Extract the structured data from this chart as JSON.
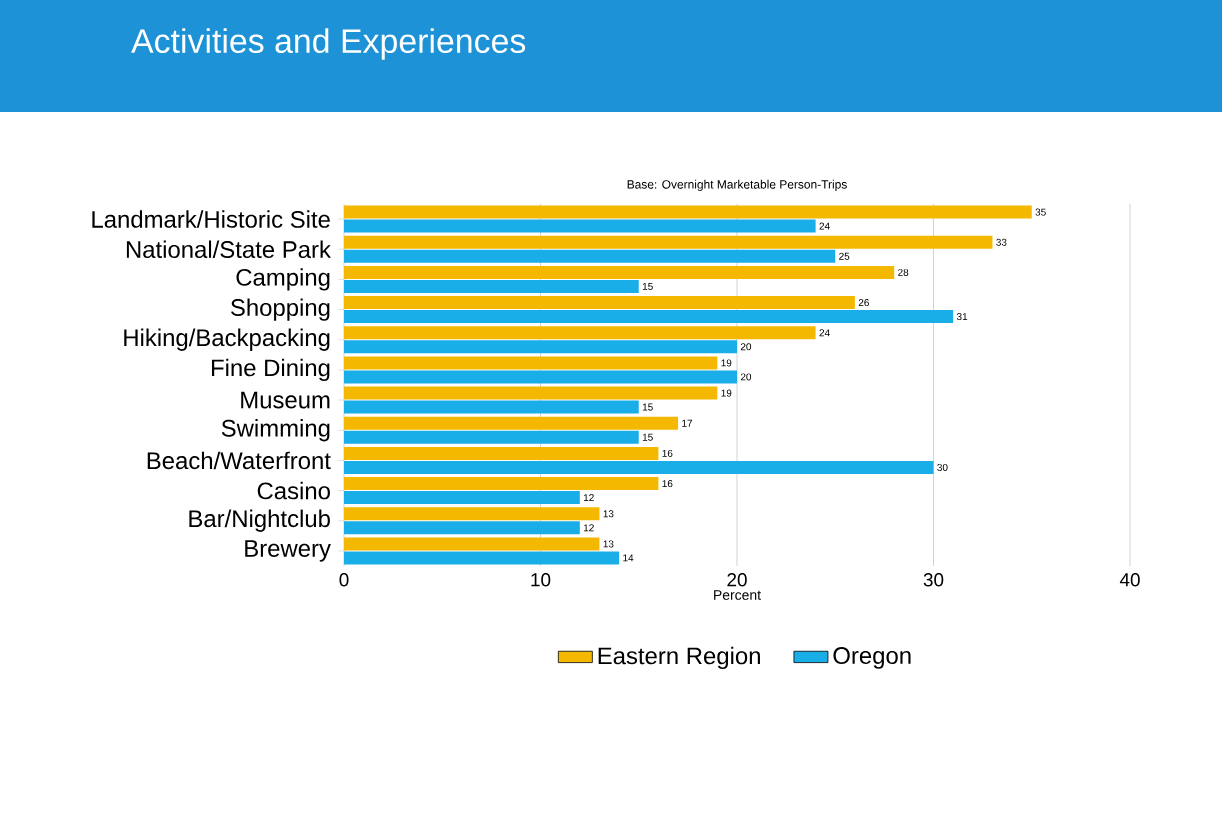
{
  "chart_data": {
    "type": "bar",
    "orientation": "horizontal",
    "title": "Activities and Experiences",
    "subtitle": "Base: Overnight Marketable Person-Trips",
    "xlabel": "Percent",
    "categories": [
      "Landmark/Historic Site",
      "National/State Park",
      "Camping",
      "Shopping",
      "Hiking/Backpacking",
      "Fine Dining",
      "Museum",
      "Swimming",
      "Beach/Waterfront",
      "Casino",
      "Bar/Nightclub",
      "Brewery"
    ],
    "series": [
      {
        "name": "Eastern Region",
        "color": "#f5b800",
        "values": [
          35,
          33,
          28,
          26,
          24,
          19,
          19,
          17,
          16,
          16,
          13,
          13
        ]
      },
      {
        "name": "Oregon",
        "color": "#1aaee8",
        "values": [
          24,
          25,
          15,
          31,
          20,
          20,
          15,
          15,
          30,
          12,
          12,
          14
        ]
      }
    ],
    "xlim": [
      0,
      40
    ],
    "xticks": [
      0,
      10,
      20,
      30,
      40
    ],
    "grid": "x",
    "legend": "bottom",
    "data_labels": true
  }
}
